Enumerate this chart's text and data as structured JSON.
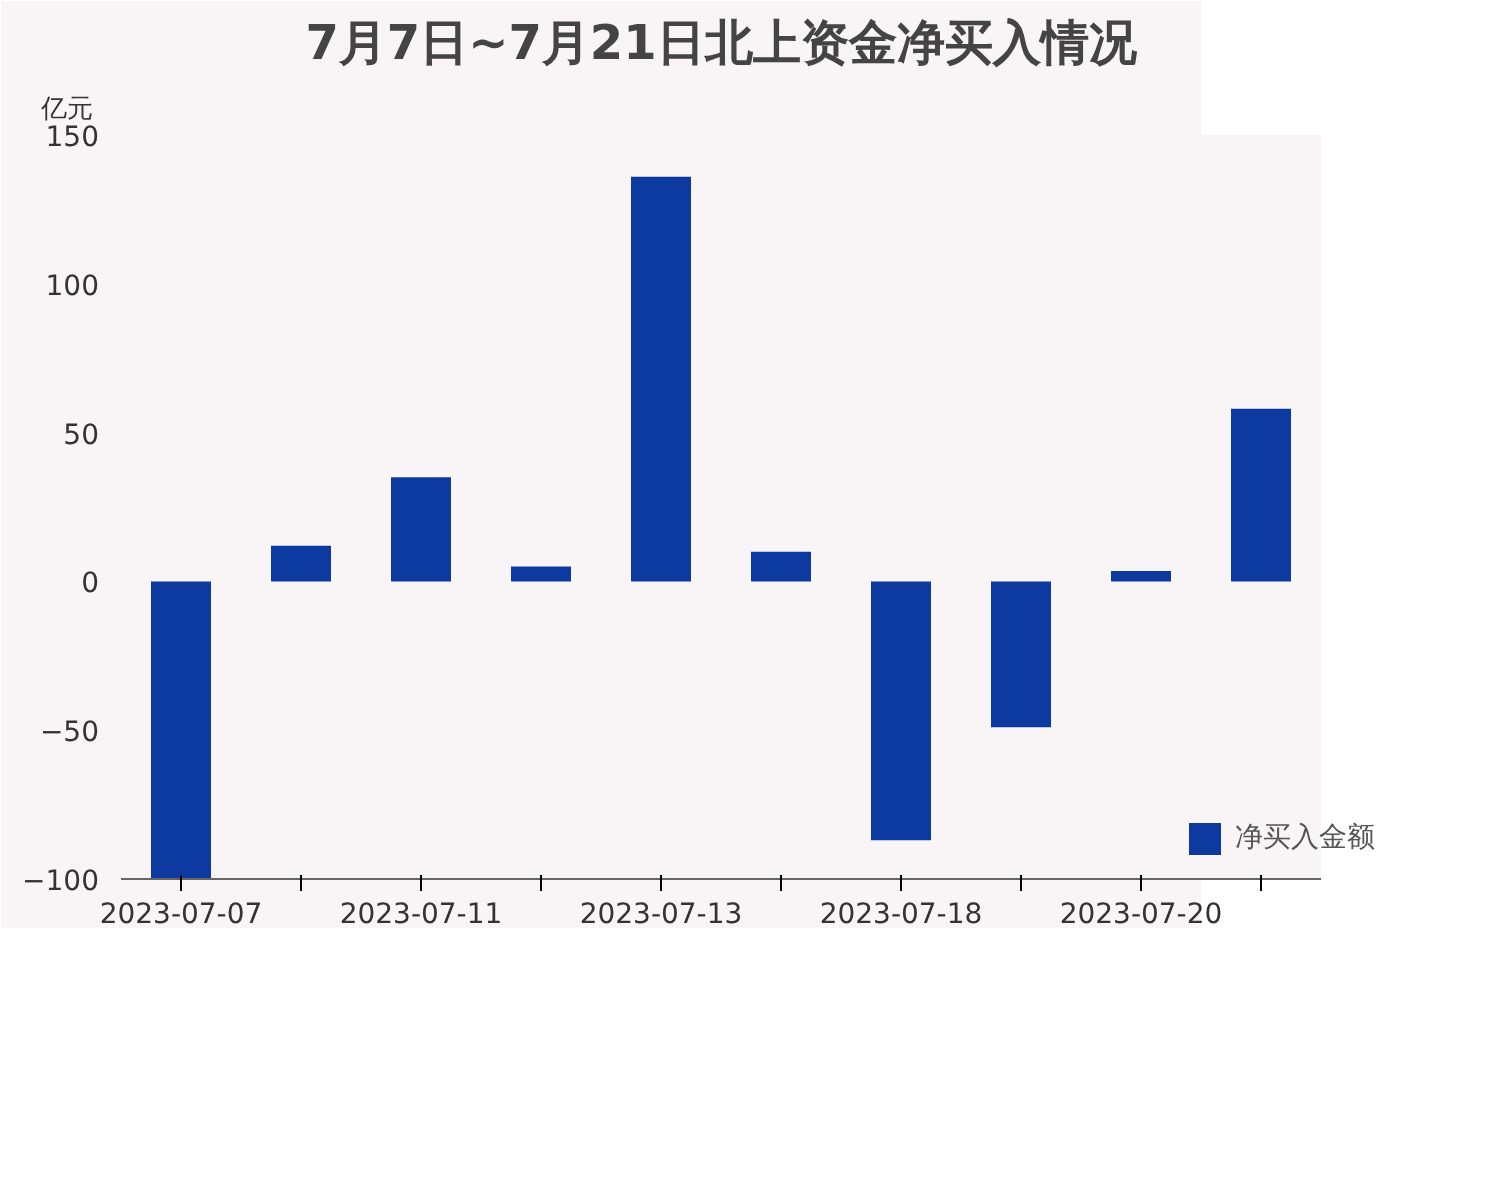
{
  "chart_data": {
    "type": "bar",
    "title": "7月7日~7月21日北上资金净买入情况",
    "ylabel": "亿元",
    "categories": [
      "2023-07-07",
      null,
      "2023-07-11",
      null,
      "2023-07-13",
      null,
      "2023-07-18",
      null,
      "2023-07-20",
      null
    ],
    "series": [
      {
        "name": "净买入金额",
        "color": "#0d3aa0",
        "values": [
          -100,
          12,
          35,
          5,
          136,
          10,
          -87,
          -49,
          3.5,
          58
        ]
      }
    ],
    "ylim": [
      -100,
      150
    ],
    "yticks": [
      -100,
      -50,
      0,
      50,
      100,
      150
    ],
    "grid": false,
    "legend": "bottom right"
  }
}
